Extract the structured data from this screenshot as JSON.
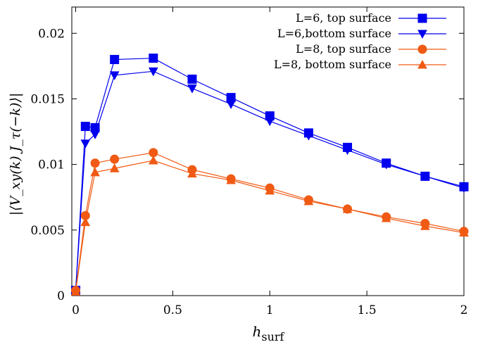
{
  "chart_data": {
    "type": "line",
    "title": "",
    "xlabel": "h_surf",
    "xlabel_main": "h",
    "xlabel_sub": "surf",
    "ylabel": "|⟨V_xy(k) J_τ(−k)⟩|",
    "xlim": [
      -0.02,
      2.0
    ],
    "ylim": [
      0,
      0.022
    ],
    "xticks": [
      0,
      0.5,
      1,
      1.5,
      2
    ],
    "xtick_labels": [
      "0",
      "0.5",
      "1",
      "1.5",
      "2"
    ],
    "yticks": [
      0,
      0.005,
      0.01,
      0.015,
      0.02
    ],
    "ytick_labels": [
      "0",
      "0.005",
      "0.01",
      "0.015",
      "0.02"
    ],
    "grid": false,
    "legend_position": "top-right",
    "series": [
      {
        "name": "L=6, top surface",
        "color": "#0000ee",
        "marker": "square",
        "x": [
          0,
          0.05,
          0.1,
          0.2,
          0.4,
          0.6,
          0.8,
          1.0,
          1.2,
          1.4,
          1.6,
          1.8,
          2.0
        ],
        "y": [
          0.0004,
          0.0129,
          0.0128,
          0.018,
          0.0181,
          0.0165,
          0.0151,
          0.0137,
          0.0124,
          0.0113,
          0.0101,
          0.0091,
          0.0083
        ]
      },
      {
        "name": "L=6,bottom surface",
        "color": "#0000ee",
        "marker": "triangle-down",
        "x": [
          0,
          0.05,
          0.1,
          0.2,
          0.4,
          0.6,
          0.8,
          1.0,
          1.2,
          1.4,
          1.6,
          1.8,
          2.0
        ],
        "y": [
          0.0004,
          0.0116,
          0.0123,
          0.0168,
          0.0171,
          0.0158,
          0.0146,
          0.0133,
          0.0122,
          0.0111,
          0.01,
          0.0091,
          0.0082
        ]
      },
      {
        "name": "L=8, top surface",
        "color": "#f05a14",
        "marker": "circle",
        "x": [
          0,
          0.05,
          0.1,
          0.2,
          0.4,
          0.6,
          0.8,
          1.0,
          1.2,
          1.4,
          1.6,
          1.8,
          2.0
        ],
        "y": [
          0.0004,
          0.0061,
          0.0101,
          0.0104,
          0.0109,
          0.0096,
          0.0089,
          0.0082,
          0.0073,
          0.0066,
          0.006,
          0.0055,
          0.0049
        ]
      },
      {
        "name": "L=8, bottom surface",
        "color": "#f05a14",
        "marker": "triangle-up",
        "x": [
          0,
          0.05,
          0.1,
          0.2,
          0.4,
          0.6,
          0.8,
          1.0,
          1.2,
          1.4,
          1.6,
          1.8,
          2.0
        ],
        "y": [
          0.0003,
          0.0056,
          0.0094,
          0.0097,
          0.0103,
          0.0093,
          0.0088,
          0.008,
          0.0072,
          0.0066,
          0.0059,
          0.0053,
          0.0048
        ]
      }
    ]
  }
}
